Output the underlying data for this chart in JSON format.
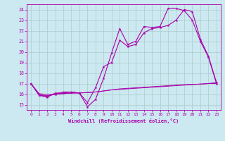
{
  "xlabel": "Windchill (Refroidissement éolien,°C)",
  "xlim": [
    -0.5,
    23.5
  ],
  "ylim": [
    14.5,
    24.5
  ],
  "xticks": [
    0,
    1,
    2,
    3,
    4,
    5,
    6,
    7,
    8,
    9,
    10,
    11,
    12,
    13,
    14,
    15,
    16,
    17,
    18,
    19,
    20,
    21,
    22,
    23
  ],
  "yticks": [
    15,
    16,
    17,
    18,
    19,
    20,
    21,
    22,
    23,
    24
  ],
  "bg_color": "#cce8f0",
  "grid_color": "#aacccc",
  "line_color": "#aa00aa",
  "line1_x": [
    0,
    1,
    2,
    3,
    4,
    5,
    6,
    7,
    8,
    9,
    10,
    11,
    12,
    13,
    14,
    15,
    16,
    17,
    18,
    19,
    20,
    21,
    22,
    23
  ],
  "line1_y": [
    17.0,
    15.9,
    15.7,
    16.1,
    16.1,
    16.2,
    16.1,
    14.8,
    15.5,
    17.5,
    19.9,
    22.2,
    20.7,
    21.0,
    22.4,
    22.3,
    22.4,
    24.1,
    24.1,
    23.9,
    23.0,
    21.0,
    19.5,
    17.0
  ],
  "line2_x": [
    0,
    1,
    2,
    3,
    4,
    5,
    6,
    7,
    8,
    9,
    10,
    11,
    12,
    13,
    14,
    15,
    16,
    17,
    18,
    19,
    20,
    21,
    22,
    23
  ],
  "line2_y": [
    17.0,
    15.9,
    15.8,
    16.0,
    16.2,
    16.2,
    16.1,
    15.2,
    16.6,
    18.6,
    19.0,
    21.1,
    20.5,
    20.7,
    21.8,
    22.2,
    22.3,
    22.5,
    23.0,
    24.0,
    23.8,
    21.2,
    19.6,
    17.1
  ],
  "line3_x": [
    0,
    1,
    2,
    3,
    4,
    5,
    6,
    7,
    8,
    9,
    10,
    11,
    12,
    13,
    14,
    15,
    16,
    17,
    18,
    19,
    20,
    21,
    22,
    23
  ],
  "line3_y": [
    17.0,
    16.05,
    15.95,
    16.0,
    16.05,
    16.1,
    16.1,
    16.15,
    16.2,
    16.3,
    16.4,
    16.5,
    16.55,
    16.6,
    16.65,
    16.7,
    16.75,
    16.8,
    16.85,
    16.9,
    16.92,
    16.95,
    17.0,
    17.0
  ],
  "line4_x": [
    0,
    1,
    2,
    3,
    4,
    5,
    6,
    7,
    8,
    9,
    10,
    11,
    12,
    13,
    14,
    15,
    16,
    17,
    18,
    19,
    20,
    21,
    22,
    23
  ],
  "line4_y": [
    17.0,
    15.95,
    15.85,
    16.0,
    16.05,
    16.1,
    16.12,
    16.15,
    16.2,
    16.3,
    16.4,
    16.45,
    16.5,
    16.55,
    16.6,
    16.65,
    16.7,
    16.75,
    16.8,
    16.85,
    16.9,
    16.95,
    17.0,
    17.1
  ]
}
